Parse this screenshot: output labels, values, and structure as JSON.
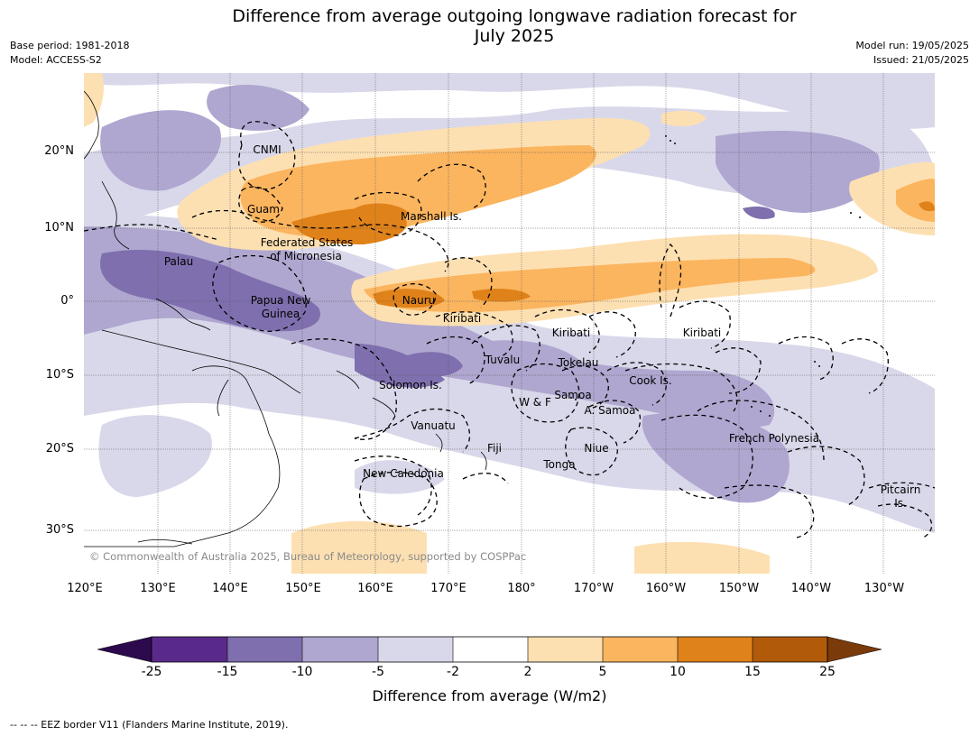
{
  "title": {
    "line1": "Difference from average outgoing longwave radiation forecast for",
    "line2": "July 2025"
  },
  "meta": {
    "base_period": "Base period: 1981-2018",
    "model": "Model: ACCESS-S2",
    "model_run": "Model run: 19/05/2025",
    "issued": "Issued: 21/05/2025"
  },
  "axes": {
    "lat_labels": [
      "20°N",
      "10°N",
      "0°",
      "10°S",
      "20°S",
      "30°S"
    ],
    "lon_labels": [
      "120°E",
      "130°E",
      "140°E",
      "150°E",
      "160°E",
      "170°E",
      "180°",
      "170°W",
      "160°W",
      "150°W",
      "140°W",
      "130°W"
    ]
  },
  "regions": [
    "CNMI",
    "Guam",
    "Marshall Is.",
    "Federated States",
    "of Micronesia",
    "Palau",
    "Papua New",
    "Guinea",
    "Nauru",
    "Kiribati",
    "Kiribati",
    "Kiribati",
    "Tuvalu",
    "Tokelau",
    "Solomon Is.",
    "Samoa",
    "W & F",
    "A. Samoa",
    "Cook Is.",
    "Vanuatu",
    "Fiji",
    "Niue",
    "Tonga",
    "French Polynesia",
    "New Caledonia",
    "Pitcairn",
    "Is."
  ],
  "copyright": "© Commonwealth of Australia 2025, Bureau of Meteorology, supported by COSPPac",
  "colorbar": {
    "title": "Difference from average (W/m2)",
    "ticks": [
      "-25",
      "-15",
      "-10",
      "-5",
      "-2",
      "2",
      "5",
      "10",
      "15",
      "25"
    ],
    "colors": {
      "lt_minus25": "#2d0a4e",
      "minus25_minus15": "#5a2a8a",
      "minus15_minus10": "#7f6fae",
      "minus10_minus5": "#afa7d0",
      "minus5_minus2": "#d9d8ea",
      "minus2_2": "#ffffff",
      "p2_5": "#fde0b2",
      "p5_10": "#fbb55f",
      "p10_15": "#e0821a",
      "p15_25": "#b05a0a",
      "gt_25": "#7b3a0a"
    }
  },
  "footnote": "--  --  -- EEZ border V11 (Flanders Marine Institute, 2019)."
}
